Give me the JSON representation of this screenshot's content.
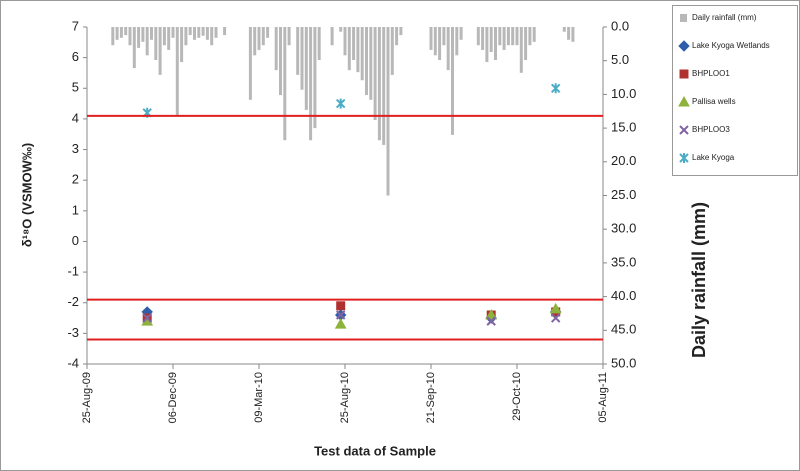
{
  "chart_data": {
    "type": "bar_scatter",
    "x_label": "Test data of Sample",
    "y_label": "δ¹⁸O (VSMOW‰)",
    "y2_label": "Daily rainfall (mm)",
    "categories": [
      "25-Aug-09",
      null,
      null,
      null,
      null,
      null,
      null,
      null,
      null,
      null,
      null,
      null,
      null,
      null,
      null,
      null,
      null,
      null,
      null,
      null,
      "06-Dec-09",
      null,
      null,
      null,
      null,
      null,
      null,
      null,
      null,
      null,
      null,
      null,
      null,
      null,
      null,
      null,
      null,
      null,
      null,
      null,
      "09-Mar-10",
      null,
      null,
      null,
      null,
      null,
      null,
      null,
      null,
      null,
      null,
      null,
      null,
      null,
      null,
      null,
      null,
      null,
      null,
      null,
      "25-Aug-10",
      null,
      null,
      null,
      null,
      null,
      null,
      null,
      null,
      null,
      null,
      null,
      null,
      null,
      null,
      null,
      null,
      null,
      null,
      null,
      "21-Sep-10",
      null,
      null,
      null,
      null,
      null,
      null,
      null,
      null,
      null,
      null,
      null,
      null,
      null,
      null,
      null,
      null,
      null,
      null,
      null,
      "29-Oct-10",
      null,
      null,
      null,
      null,
      null,
      null,
      null,
      null,
      null,
      null,
      null,
      null,
      null,
      null,
      null,
      null,
      null,
      null,
      null,
      "05-Aug-11"
    ],
    "ylim": [
      -4,
      7
    ],
    "yticks": [
      -4,
      -3,
      -2,
      -1,
      0,
      1,
      2,
      3,
      4,
      5,
      6,
      7
    ],
    "y2lim": [
      0,
      50
    ],
    "y2_reversed": true,
    "y2ticks": [
      {
        "value": 0,
        "label": "0.0"
      },
      {
        "value": 5,
        "label": "5.0"
      },
      {
        "value": 10,
        "label": "10.0"
      },
      {
        "value": 15,
        "label": "15.0"
      },
      {
        "value": 20,
        "label": "20.0"
      },
      {
        "value": 25,
        "label": "25.0"
      },
      {
        "value": 30,
        "label": "30.0"
      },
      {
        "value": 35,
        "label": "35.0"
      },
      {
        "value": 40,
        "label": "40.0"
      },
      {
        "value": 45,
        "label": "45.0"
      },
      {
        "value": 50,
        "label": "50.0"
      }
    ],
    "reference_lines": [
      4.1,
      -1.9,
      -3.2
    ],
    "reference_color": "#e02020",
    "grid": false,
    "legend": "right",
    "series": [
      {
        "name": "Daily rainfall (mm)",
        "type": "bar",
        "axis": "y2",
        "color": "#b8b8b8",
        "values": [
          null,
          null,
          null,
          null,
          null,
          null,
          2.7,
          1.9,
          1.6,
          1.2,
          2.7,
          6.1,
          3.1,
          2.2,
          4.2,
          1.9,
          4.9,
          7.1,
          2.7,
          3.4,
          1.6,
          13.1,
          5.2,
          2.7,
          1.2,
          1.9,
          1.6,
          1.3,
          1.9,
          2.7,
          1.6,
          null,
          1.2,
          null,
          null,
          null,
          null,
          null,
          10.8,
          4.2,
          3.4,
          2.7,
          1.6,
          null,
          6.4,
          10.1,
          16.8,
          2.7,
          null,
          7.1,
          9.3,
          12.3,
          16.8,
          15,
          4.9,
          null,
          null,
          2.7,
          null,
          0.7,
          4.2,
          6.4,
          4.9,
          6.7,
          7.9,
          10.1,
          10.8,
          13.8,
          16.8,
          17.5,
          25,
          7.1,
          2.7,
          1.2,
          null,
          null,
          null,
          null,
          null,
          null,
          3.4,
          4.2,
          4.9,
          2.7,
          6.4,
          16,
          4.2,
          1.9,
          null,
          null,
          null,
          2.7,
          3.4,
          5.2,
          3.7,
          4.9,
          2.7,
          3.4,
          2.7,
          2.7,
          2.7,
          6.8,
          4.9,
          2.7,
          2.2,
          null,
          null,
          null,
          null,
          null,
          null,
          0.7,
          1.9,
          2.2,
          null,
          null,
          null,
          null,
          null,
          null,
          null
        ]
      },
      {
        "name": "Lake Kyoga Wetlands",
        "type": "scatter",
        "marker": "diamond",
        "color": "#2e5fa8",
        "values": [
          null,
          null,
          null,
          null,
          null,
          null,
          null,
          null,
          null,
          null,
          null,
          null,
          null,
          null,
          -2.3,
          null,
          null,
          null,
          null,
          null,
          null,
          null,
          null,
          null,
          null,
          null,
          null,
          null,
          null,
          null,
          null,
          null,
          null,
          null,
          null,
          null,
          null,
          null,
          null,
          null,
          null,
          null,
          null,
          null,
          null,
          null,
          null,
          null,
          null,
          null,
          null,
          null,
          null,
          null,
          null,
          null,
          null,
          null,
          null,
          -2.4,
          null,
          null,
          null,
          null,
          null,
          null,
          null,
          null,
          null,
          null,
          null,
          null,
          null,
          null,
          null,
          null,
          null,
          null,
          null,
          null,
          null,
          null,
          null,
          null,
          null,
          null,
          null,
          null,
          null,
          null,
          null,
          null,
          null,
          null,
          -2.5,
          null,
          null,
          null,
          null,
          null,
          null,
          null,
          null,
          null,
          null,
          null,
          null,
          null,
          null,
          -2.3,
          null,
          null,
          null,
          null,
          null,
          null,
          null,
          null,
          null,
          null,
          null
        ]
      },
      {
        "name": "BHPLOO1",
        "type": "scatter",
        "marker": "square",
        "color": "#b03030",
        "values": [
          null,
          null,
          null,
          null,
          null,
          null,
          null,
          null,
          null,
          null,
          null,
          null,
          null,
          null,
          -2.5,
          null,
          null,
          null,
          null,
          null,
          null,
          null,
          null,
          null,
          null,
          null,
          null,
          null,
          null,
          null,
          null,
          null,
          null,
          null,
          null,
          null,
          null,
          null,
          null,
          null,
          null,
          null,
          null,
          null,
          null,
          null,
          null,
          null,
          null,
          null,
          null,
          null,
          null,
          null,
          null,
          null,
          null,
          null,
          null,
          -2.1,
          null,
          null,
          null,
          null,
          null,
          null,
          null,
          null,
          null,
          null,
          null,
          null,
          null,
          null,
          null,
          null,
          null,
          null,
          null,
          null,
          null,
          null,
          null,
          null,
          null,
          null,
          null,
          null,
          null,
          null,
          null,
          null,
          null,
          null,
          -2.4,
          null,
          null,
          null,
          null,
          null,
          null,
          null,
          null,
          null,
          null,
          null,
          null,
          null,
          null,
          -2.3,
          null,
          null,
          null,
          null,
          null,
          null,
          null,
          null,
          null,
          null,
          null
        ]
      },
      {
        "name": "Pallisa wells",
        "type": "scatter",
        "marker": "triangle",
        "color": "#8db33a",
        "values": [
          null,
          null,
          null,
          null,
          null,
          null,
          null,
          null,
          null,
          null,
          null,
          null,
          null,
          null,
          -2.6,
          null,
          null,
          null,
          null,
          null,
          null,
          null,
          null,
          null,
          null,
          null,
          null,
          null,
          null,
          null,
          null,
          null,
          null,
          null,
          null,
          null,
          null,
          null,
          null,
          null,
          null,
          null,
          null,
          null,
          null,
          null,
          null,
          null,
          null,
          null,
          null,
          null,
          null,
          null,
          null,
          null,
          null,
          null,
          null,
          -2.7,
          null,
          null,
          null,
          null,
          null,
          null,
          null,
          null,
          null,
          null,
          null,
          null,
          null,
          null,
          null,
          null,
          null,
          null,
          null,
          null,
          null,
          null,
          null,
          null,
          null,
          null,
          null,
          null,
          null,
          null,
          null,
          null,
          null,
          null,
          -2.4,
          null,
          null,
          null,
          null,
          null,
          null,
          null,
          null,
          null,
          null,
          null,
          null,
          null,
          null,
          -2.2,
          null,
          null,
          null,
          null,
          null,
          null,
          null,
          null,
          null,
          null,
          null
        ]
      },
      {
        "name": "BHPLOO3",
        "type": "scatter",
        "marker": "cross",
        "color": "#8064a2",
        "values": [
          null,
          null,
          null,
          null,
          null,
          null,
          null,
          null,
          null,
          null,
          null,
          null,
          null,
          null,
          -2.5,
          null,
          null,
          null,
          null,
          null,
          null,
          null,
          null,
          null,
          null,
          null,
          null,
          null,
          null,
          null,
          null,
          null,
          null,
          null,
          null,
          null,
          null,
          null,
          null,
          null,
          null,
          null,
          null,
          null,
          null,
          null,
          null,
          null,
          null,
          null,
          null,
          null,
          null,
          null,
          null,
          null,
          null,
          null,
          null,
          -2.4,
          null,
          null,
          null,
          null,
          null,
          null,
          null,
          null,
          null,
          null,
          null,
          null,
          null,
          null,
          null,
          null,
          null,
          null,
          null,
          null,
          null,
          null,
          null,
          null,
          null,
          null,
          null,
          null,
          null,
          null,
          null,
          null,
          null,
          null,
          -2.6,
          null,
          null,
          null,
          null,
          null,
          null,
          null,
          null,
          null,
          null,
          null,
          null,
          null,
          null,
          -2.5,
          null,
          null,
          null,
          null,
          null,
          null,
          null,
          null,
          null,
          null,
          null
        ]
      },
      {
        "name": "Lake Kyoga",
        "type": "scatter",
        "marker": "star",
        "color": "#4bacc6",
        "values": [
          null,
          null,
          null,
          null,
          null,
          null,
          null,
          null,
          null,
          null,
          null,
          null,
          null,
          null,
          4.2,
          null,
          null,
          null,
          null,
          null,
          null,
          null,
          null,
          null,
          null,
          null,
          null,
          null,
          null,
          null,
          null,
          null,
          null,
          null,
          null,
          null,
          null,
          null,
          null,
          null,
          null,
          null,
          null,
          null,
          null,
          null,
          null,
          null,
          null,
          null,
          null,
          null,
          null,
          null,
          null,
          null,
          null,
          null,
          null,
          4.5,
          null,
          null,
          null,
          null,
          null,
          null,
          null,
          null,
          null,
          null,
          null,
          null,
          null,
          null,
          null,
          null,
          null,
          null,
          null,
          null,
          null,
          null,
          null,
          null,
          null,
          null,
          null,
          null,
          null,
          null,
          null,
          null,
          null,
          null,
          null,
          null,
          null,
          null,
          null,
          null,
          null,
          null,
          null,
          null,
          null,
          null,
          null,
          null,
          null,
          5.0,
          null,
          null,
          null,
          null,
          null,
          null,
          null,
          null,
          null,
          null,
          null
        ]
      }
    ]
  }
}
